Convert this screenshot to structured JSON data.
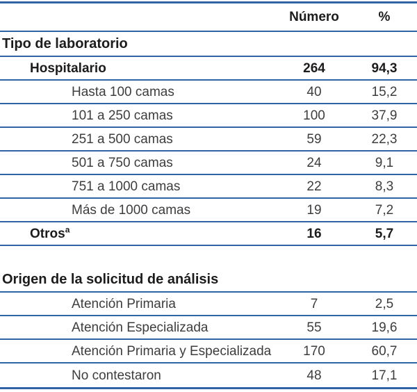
{
  "columns": {
    "number_label": "Número",
    "percent_label": "%"
  },
  "colors": {
    "rule_line": "#2f63a4",
    "text_regular": "#3d3d3d",
    "text_bold": "#1c1c1c",
    "background": "#ffffff"
  },
  "sections": [
    {
      "title": "Tipo de laboratorio",
      "rows": [
        {
          "label": "Hospitalario",
          "sup": "",
          "number": "264",
          "percent": "94,3",
          "bold": true,
          "indent": 1
        },
        {
          "label": "Hasta 100 camas",
          "sup": "",
          "number": "40",
          "percent": "15,2",
          "bold": false,
          "indent": 2
        },
        {
          "label": "101 a 250 camas",
          "sup": "",
          "number": "100",
          "percent": "37,9",
          "bold": false,
          "indent": 2
        },
        {
          "label": "251 a 500 camas",
          "sup": "",
          "number": "59",
          "percent": "22,3",
          "bold": false,
          "indent": 2
        },
        {
          "label": "501 a 750 camas",
          "sup": "",
          "number": "24",
          "percent": "9,1",
          "bold": false,
          "indent": 2
        },
        {
          "label": "751 a 1000 camas",
          "sup": "",
          "number": "22",
          "percent": "8,3",
          "bold": false,
          "indent": 2
        },
        {
          "label": "Más de 1000 camas",
          "sup": "",
          "number": "19",
          "percent": "7,2",
          "bold": false,
          "indent": 2
        },
        {
          "label": "Otros",
          "sup": "a",
          "number": "16",
          "percent": "5,7",
          "bold": true,
          "indent": 1
        }
      ]
    },
    {
      "title": "Origen de la solicitud de análisis",
      "rows": [
        {
          "label": "Atención Primaria",
          "sup": "",
          "number": "7",
          "percent": "2,5",
          "bold": false,
          "indent": 2
        },
        {
          "label": "Atención Especializada",
          "sup": "",
          "number": "55",
          "percent": "19,6",
          "bold": false,
          "indent": 2
        },
        {
          "label": "Atención Primaria y Especializada",
          "sup": "",
          "number": "170",
          "percent": "60,7",
          "bold": false,
          "indent": 2
        },
        {
          "label": "No contestaron",
          "sup": "",
          "number": "48",
          "percent": "17,1",
          "bold": false,
          "indent": 2
        }
      ]
    }
  ]
}
